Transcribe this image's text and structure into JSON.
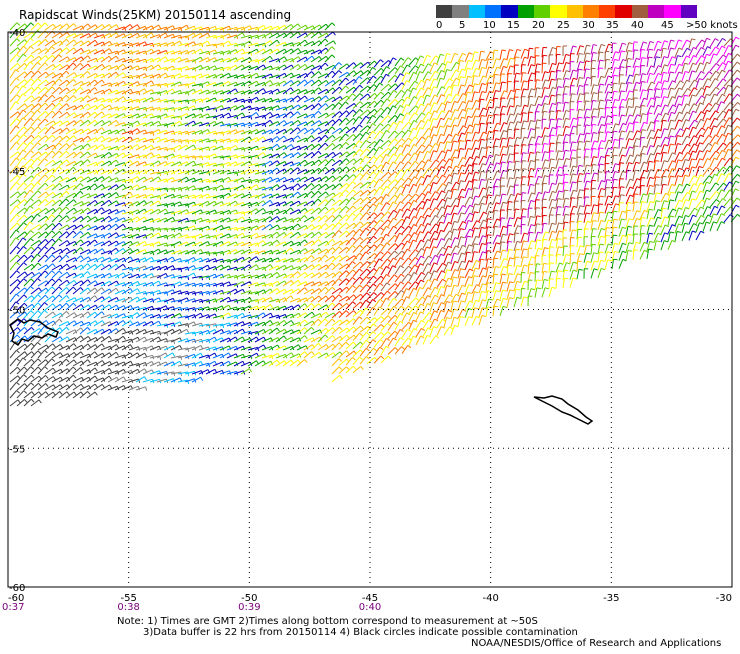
{
  "title": "Rapidscat Winds(25KM) 20150114 ascending",
  "legend": {
    "labels": [
      "0",
      "5",
      "10",
      "15",
      "20",
      "25",
      "30",
      "35",
      "40",
      "45",
      ">50 knots"
    ],
    "colors": [
      "#404040",
      "#808080",
      "#00c0ff",
      "#0070ff",
      "#0000c0",
      "#00a000",
      "#60d000",
      "#ffff00",
      "#ffc000",
      "#ff8000",
      "#ff4000",
      "#e00000",
      "#a06040",
      "#c000c0",
      "#ff00ff",
      "#6000c0"
    ]
  },
  "map": {
    "lon_ticks": [
      "-60",
      "-55",
      "-50",
      "-45",
      "-40",
      "-35",
      "-30"
    ],
    "lat_ticks": [
      "-40",
      "-45",
      "-50",
      "-55",
      "-60"
    ],
    "lon_range": [
      -60,
      -30
    ],
    "lat_range": [
      -60,
      -40
    ],
    "time_labels": [
      "0:37",
      "0:38",
      "0:39",
      "0:40"
    ],
    "wind_legend_unit": "knots"
  },
  "notes": {
    "line1": "Note: 1) Times are GMT 2)Times along bottom correspond to measurement at ~50S",
    "line2": "3)Data buffer is 22 hrs from 20150114 4) Black circles indicate possible contamination",
    "line3": "NOAA/NESDIS/Office of Research and Applications"
  }
}
